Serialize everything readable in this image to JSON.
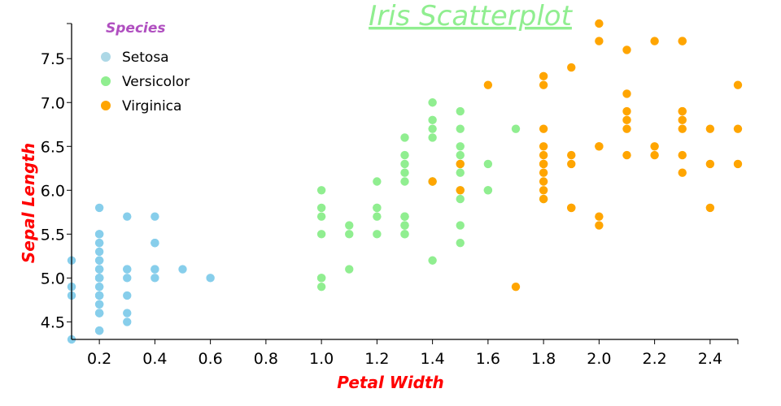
{
  "chart_data": {
    "type": "scatter",
    "title": "Iris Scatterplot",
    "xlabel": "Petal Width",
    "ylabel": "Sepal Length",
    "xlim": [
      0.1,
      2.5
    ],
    "ylim": [
      4.3,
      7.9
    ],
    "xticks": [
      "0.2",
      "0.4",
      "0.6",
      "0.8",
      "1.0",
      "1.2",
      "1.4",
      "1.6",
      "1.8",
      "2.0",
      "2.2",
      "2.4"
    ],
    "yticks": [
      "4.5",
      "5.0",
      "5.5",
      "6.0",
      "6.5",
      "7.0",
      "7.5"
    ],
    "grid": false,
    "legend": {
      "title": "Species",
      "placement": "top-left"
    },
    "series": [
      {
        "name": "Setosa",
        "color": "#87ceeb",
        "legend_color": "#add8e6",
        "points": [
          [
            0.2,
            5.1
          ],
          [
            0.2,
            4.9
          ],
          [
            0.2,
            4.7
          ],
          [
            0.2,
            4.6
          ],
          [
            0.2,
            5.0
          ],
          [
            0.4,
            5.4
          ],
          [
            0.3,
            4.6
          ],
          [
            0.2,
            5.0
          ],
          [
            0.2,
            4.4
          ],
          [
            0.1,
            4.9
          ],
          [
            0.2,
            5.4
          ],
          [
            0.2,
            4.8
          ],
          [
            0.1,
            4.8
          ],
          [
            0.1,
            4.3
          ],
          [
            0.2,
            5.8
          ],
          [
            0.4,
            5.7
          ],
          [
            0.4,
            5.4
          ],
          [
            0.3,
            5.1
          ],
          [
            0.3,
            5.7
          ],
          [
            0.3,
            5.1
          ],
          [
            0.2,
            5.4
          ],
          [
            0.4,
            5.1
          ],
          [
            0.2,
            4.6
          ],
          [
            0.5,
            5.1
          ],
          [
            0.2,
            4.8
          ],
          [
            0.2,
            5.0
          ],
          [
            0.4,
            5.0
          ],
          [
            0.2,
            5.2
          ],
          [
            0.2,
            5.2
          ],
          [
            0.2,
            4.7
          ],
          [
            0.2,
            4.8
          ],
          [
            0.4,
            5.4
          ],
          [
            0.1,
            5.2
          ],
          [
            0.2,
            5.5
          ],
          [
            0.2,
            4.9
          ],
          [
            0.2,
            5.0
          ],
          [
            0.2,
            5.5
          ],
          [
            0.1,
            4.9
          ],
          [
            0.2,
            4.4
          ],
          [
            0.2,
            5.1
          ],
          [
            0.3,
            5.0
          ],
          [
            0.3,
            4.5
          ],
          [
            0.2,
            4.4
          ],
          [
            0.6,
            5.0
          ],
          [
            0.4,
            5.1
          ],
          [
            0.3,
            4.8
          ],
          [
            0.2,
            5.1
          ],
          [
            0.2,
            4.6
          ],
          [
            0.2,
            5.3
          ],
          [
            0.2,
            5.0
          ]
        ]
      },
      {
        "name": "Versicolor",
        "color": "#90ee90",
        "legend_color": "#90ee90",
        "points": [
          [
            1.4,
            7.0
          ],
          [
            1.5,
            6.4
          ],
          [
            1.5,
            6.9
          ],
          [
            1.3,
            5.5
          ],
          [
            1.5,
            6.5
          ],
          [
            1.3,
            5.7
          ],
          [
            1.6,
            6.3
          ],
          [
            1.0,
            4.9
          ],
          [
            1.3,
            6.6
          ],
          [
            1.4,
            5.2
          ],
          [
            1.0,
            5.0
          ],
          [
            1.5,
            5.9
          ],
          [
            1.0,
            6.0
          ],
          [
            1.4,
            6.1
          ],
          [
            1.3,
            5.6
          ],
          [
            1.4,
            6.7
          ],
          [
            1.5,
            5.6
          ],
          [
            1.0,
            5.8
          ],
          [
            1.5,
            6.2
          ],
          [
            1.1,
            5.6
          ],
          [
            1.8,
            5.9
          ],
          [
            1.3,
            6.1
          ],
          [
            1.5,
            6.3
          ],
          [
            1.2,
            6.1
          ],
          [
            1.3,
            6.4
          ],
          [
            1.4,
            6.6
          ],
          [
            1.4,
            6.8
          ],
          [
            1.7,
            6.7
          ],
          [
            1.5,
            6.0
          ],
          [
            1.0,
            5.7
          ],
          [
            1.1,
            5.5
          ],
          [
            1.0,
            5.5
          ],
          [
            1.2,
            5.8
          ],
          [
            1.6,
            6.0
          ],
          [
            1.5,
            5.4
          ],
          [
            1.6,
            6.0
          ],
          [
            1.5,
            6.7
          ],
          [
            1.3,
            6.3
          ],
          [
            1.3,
            5.6
          ],
          [
            1.3,
            5.5
          ],
          [
            1.2,
            5.5
          ],
          [
            1.4,
            6.1
          ],
          [
            1.2,
            5.8
          ],
          [
            1.0,
            5.0
          ],
          [
            1.3,
            5.6
          ],
          [
            1.2,
            5.7
          ],
          [
            1.3,
            5.7
          ],
          [
            1.3,
            6.2
          ],
          [
            1.1,
            5.1
          ],
          [
            1.3,
            5.7
          ]
        ]
      },
      {
        "name": "Virginica",
        "color": "#ffa500",
        "legend_color": "#ffa500",
        "points": [
          [
            2.5,
            6.3
          ],
          [
            1.9,
            5.8
          ],
          [
            2.1,
            7.1
          ],
          [
            1.8,
            6.3
          ],
          [
            2.2,
            6.5
          ],
          [
            2.1,
            7.6
          ],
          [
            1.7,
            4.9
          ],
          [
            1.8,
            7.3
          ],
          [
            1.8,
            6.7
          ],
          [
            2.5,
            7.2
          ],
          [
            2.0,
            6.5
          ],
          [
            1.9,
            6.4
          ],
          [
            2.1,
            6.8
          ],
          [
            2.0,
            5.7
          ],
          [
            2.4,
            5.8
          ],
          [
            2.3,
            6.4
          ],
          [
            1.8,
            6.5
          ],
          [
            2.2,
            7.7
          ],
          [
            2.3,
            7.7
          ],
          [
            1.5,
            6.0
          ],
          [
            2.3,
            6.9
          ],
          [
            2.0,
            5.6
          ],
          [
            2.0,
            7.7
          ],
          [
            1.8,
            6.3
          ],
          [
            2.1,
            6.7
          ],
          [
            1.8,
            7.2
          ],
          [
            1.8,
            6.2
          ],
          [
            1.8,
            6.1
          ],
          [
            2.1,
            6.4
          ],
          [
            1.6,
            7.2
          ],
          [
            1.9,
            7.4
          ],
          [
            2.0,
            7.9
          ],
          [
            2.2,
            6.4
          ],
          [
            1.5,
            6.3
          ],
          [
            1.4,
            6.1
          ],
          [
            2.3,
            7.7
          ],
          [
            2.4,
            6.3
          ],
          [
            1.8,
            6.4
          ],
          [
            1.8,
            6.0
          ],
          [
            2.1,
            6.9
          ],
          [
            2.4,
            6.7
          ],
          [
            2.3,
            6.9
          ],
          [
            1.9,
            5.8
          ],
          [
            2.3,
            6.8
          ],
          [
            2.5,
            6.7
          ],
          [
            2.3,
            6.7
          ],
          [
            1.9,
            6.3
          ],
          [
            2.0,
            6.5
          ],
          [
            2.3,
            6.2
          ],
          [
            1.8,
            5.9
          ]
        ]
      }
    ]
  }
}
